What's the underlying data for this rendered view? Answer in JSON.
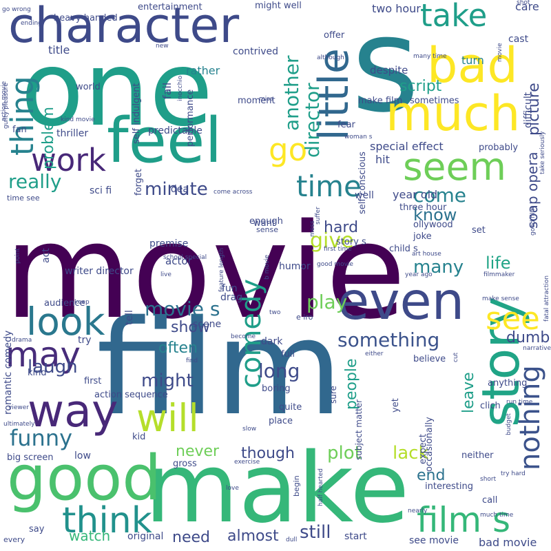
{
  "words": [
    {
      "text": "movie",
      "color": "#440154"
    },
    {
      "text": "film",
      "color": "#31688e"
    },
    {
      "text": "one",
      "color": "#1f9e89"
    },
    {
      "text": "make",
      "color": "#35b779"
    },
    {
      "text": "s",
      "color": "#26828e"
    },
    {
      "text": "character",
      "color": "#3e4a89"
    },
    {
      "text": "bad",
      "color": "#fde725"
    },
    {
      "text": "much",
      "color": "#fde725"
    },
    {
      "text": "good",
      "color": "#4ac16d"
    },
    {
      "text": "feel",
      "color": "#1f9e89"
    },
    {
      "text": "even",
      "color": "#3e4a89"
    },
    {
      "text": "story",
      "color": "#20a486"
    },
    {
      "text": "little",
      "color": "#31688e"
    },
    {
      "text": "seem",
      "color": "#6ece58"
    },
    {
      "text": "way",
      "color": "#482878"
    },
    {
      "text": "look",
      "color": "#2a788e"
    },
    {
      "text": "work",
      "color": "#482878"
    },
    {
      "text": "take",
      "color": "#1f9e89"
    },
    {
      "text": "thing",
      "color": "#26828e"
    },
    {
      "text": "go",
      "color": "#fde725"
    },
    {
      "text": "time",
      "color": "#26828e"
    },
    {
      "text": "may",
      "color": "#472c7a"
    },
    {
      "text": "will",
      "color": "#b5de2b"
    },
    {
      "text": "think",
      "color": "#21918c"
    },
    {
      "text": "see",
      "color": "#fde725"
    },
    {
      "text": "comedy",
      "color": "#1f9e89"
    },
    {
      "text": "nothing",
      "color": "#3b528b"
    },
    {
      "text": "film s",
      "color": "#35b779"
    },
    {
      "text": "something",
      "color": "#3b528b"
    },
    {
      "text": "funny",
      "color": "#2c728e"
    },
    {
      "text": "really",
      "color": "#1f9e89"
    },
    {
      "text": "minute",
      "color": "#3e4a89"
    },
    {
      "text": "director",
      "color": "#1f9e89"
    },
    {
      "text": "another",
      "color": "#1f9e89"
    },
    {
      "text": "picture",
      "color": "#3e4a89"
    },
    {
      "text": "script",
      "color": "#1f9e89"
    },
    {
      "text": "problem",
      "color": "#1f9e89"
    },
    {
      "text": "movie s",
      "color": "#2c728e"
    },
    {
      "text": "laugh",
      "color": "#3e4a89"
    },
    {
      "text": "might",
      "color": "#3e4a89"
    },
    {
      "text": "long",
      "color": "#3e4a89"
    },
    {
      "text": "come",
      "color": "#26828e"
    },
    {
      "text": "soap opera",
      "color": "#3e4a89"
    },
    {
      "text": "play",
      "color": "#6ece58"
    },
    {
      "text": "give",
      "color": "#b5de2b"
    },
    {
      "text": "life",
      "color": "#20a486"
    },
    {
      "text": "many",
      "color": "#26828e"
    },
    {
      "text": "know",
      "color": "#2c728e"
    },
    {
      "text": "hard",
      "color": "#3e4a89"
    },
    {
      "text": "people",
      "color": "#1f9e89"
    },
    {
      "text": "leave",
      "color": "#1f9e89"
    },
    {
      "text": "never",
      "color": "#6ece58"
    },
    {
      "text": "lack",
      "color": "#b5de2b"
    },
    {
      "text": "plot",
      "color": "#6ece58"
    },
    {
      "text": "though",
      "color": "#3e4a89"
    },
    {
      "text": "end",
      "color": "#2c728e"
    },
    {
      "text": "still",
      "color": "#3e4a89"
    },
    {
      "text": "almost",
      "color": "#3e4a89"
    },
    {
      "text": "need",
      "color": "#3e4a89"
    },
    {
      "text": "watch",
      "color": "#35b779"
    },
    {
      "text": "often",
      "color": "#26828e"
    },
    {
      "text": "show",
      "color": "#3e4a89"
    },
    {
      "text": "dumb",
      "color": "#3e4a89"
    },
    {
      "text": "two hour",
      "color": "#3e4a89"
    },
    {
      "text": "rather",
      "color": "#26828e"
    },
    {
      "text": "title",
      "color": "#3e4a89"
    },
    {
      "text": "contrived",
      "color": "#3e4a89"
    },
    {
      "text": "might well",
      "color": "#3e4a89"
    },
    {
      "text": "heavy handed",
      "color": "#3e4a89"
    },
    {
      "text": "entertainment",
      "color": "#3e4a89"
    },
    {
      "text": "go wrong",
      "color": "#3e4a89"
    },
    {
      "text": "ending",
      "color": "#3e4a89"
    },
    {
      "text": "care",
      "color": "#3e4a89"
    },
    {
      "text": "shot",
      "color": "#3e4a89"
    },
    {
      "text": "cast",
      "color": "#3e4a89"
    },
    {
      "text": "turn",
      "color": "#26828e"
    },
    {
      "text": "offer",
      "color": "#3e4a89"
    },
    {
      "text": "despite",
      "color": "#3e4a89"
    },
    {
      "text": "although",
      "color": "#3e4a89"
    },
    {
      "text": "many time",
      "color": "#3e4a89"
    },
    {
      "text": "movie",
      "color": "#3e4a89"
    },
    {
      "text": "difficult",
      "color": "#3e4a89"
    },
    {
      "text": "sometimes",
      "color": "#3e4a89"
    },
    {
      "text": "make film",
      "color": "#3e4a89"
    },
    {
      "text": "fear",
      "color": "#3e4a89"
    },
    {
      "text": "woman s",
      "color": "#3e4a89"
    },
    {
      "text": "take seriously",
      "color": "#3e4a89"
    },
    {
      "text": "probably",
      "color": "#3e4a89"
    },
    {
      "text": "special effect",
      "color": "#3e4a89"
    },
    {
      "text": "self conscious",
      "color": "#3e4a89"
    },
    {
      "text": "hit",
      "color": "#3e4a89"
    },
    {
      "text": "year old",
      "color": "#3e4a89"
    },
    {
      "text": "three hour",
      "color": "#3e4a89"
    },
    {
      "text": "mess",
      "color": "#3e4a89"
    },
    {
      "text": "suffer",
      "color": "#3e4a89"
    },
    {
      "text": "story s",
      "color": "#3e4a89"
    },
    {
      "text": "joke",
      "color": "#3e4a89"
    },
    {
      "text": "ollywood",
      "color": "#3e4a89"
    },
    {
      "text": "child s",
      "color": "#3e4a89"
    },
    {
      "text": "set",
      "color": "#3e4a89"
    },
    {
      "text": "art house",
      "color": "#3e4a89"
    },
    {
      "text": "first time",
      "color": "#3e4a89"
    },
    {
      "text": "good movie",
      "color": "#3e4a89"
    },
    {
      "text": "year ago",
      "color": "#3e4a89"
    },
    {
      "text": "filmmaker",
      "color": "#3e4a89"
    },
    {
      "text": "fatal attraction",
      "color": "#3e4a89"
    },
    {
      "text": "good film",
      "color": "#3e4a89"
    },
    {
      "text": "make sense",
      "color": "#3e4a89"
    },
    {
      "text": "world",
      "color": "#3e4a89"
    },
    {
      "text": "inocchio",
      "color": "#3e4a89"
    },
    {
      "text": "self indulgent",
      "color": "#3e4a89"
    },
    {
      "text": "fail",
      "color": "#3e4a89"
    },
    {
      "text": "performance",
      "color": "#3e4a89"
    },
    {
      "text": "moment",
      "color": "#3e4a89"
    },
    {
      "text": "miss",
      "color": "#3e4a89"
    },
    {
      "text": "predictable",
      "color": "#3e4a89"
    },
    {
      "text": "guilty pleasure",
      "color": "#3e4a89"
    },
    {
      "text": "action movie",
      "color": "#3e4a89"
    },
    {
      "text": "kind movie",
      "color": "#3e4a89"
    },
    {
      "text": "thriller",
      "color": "#3e4a89"
    },
    {
      "text": "fan",
      "color": "#3e4a89"
    },
    {
      "text": "forget",
      "color": "#3e4a89"
    },
    {
      "text": "sci fi",
      "color": "#3e4a89"
    },
    {
      "text": "idea",
      "color": "#3e4a89"
    },
    {
      "text": "time see",
      "color": "#3e4a89"
    },
    {
      "text": "come across",
      "color": "#3e4a89"
    },
    {
      "text": "well",
      "color": "#3e4a89"
    },
    {
      "text": "enough",
      "color": "#3e4a89"
    },
    {
      "text": "want",
      "color": "#3e4a89"
    },
    {
      "text": "sense",
      "color": "#3e4a89"
    },
    {
      "text": "feature length",
      "color": "#3e4a89"
    },
    {
      "text": "b movie",
      "color": "#3e4a89"
    },
    {
      "text": "romantic comedy",
      "color": "#3e4a89"
    },
    {
      "text": "act",
      "color": "#3e4a89"
    },
    {
      "text": "premise",
      "color": "#3e4a89"
    },
    {
      "text": "actor",
      "color": "#3e4a89"
    },
    {
      "text": "scene",
      "color": "#3e4a89"
    },
    {
      "text": "fun",
      "color": "#3e4a89"
    },
    {
      "text": "point",
      "color": "#3e4a89"
    },
    {
      "text": "school special",
      "color": "#3e4a89"
    },
    {
      "text": "live",
      "color": "#3e4a89"
    },
    {
      "text": "tell",
      "color": "#3e4a89"
    },
    {
      "text": "writer director",
      "color": "#3e4a89"
    },
    {
      "text": "humor",
      "color": "#3e4a89"
    },
    {
      "text": "audience",
      "color": "#3e4a89"
    },
    {
      "text": "keep",
      "color": "#3e4a89"
    },
    {
      "text": "drag",
      "color": "#3e4a89"
    },
    {
      "text": "e iro",
      "color": "#3e4a89"
    },
    {
      "text": "two",
      "color": "#3e4a89"
    },
    {
      "text": "dark",
      "color": "#3e4a89"
    },
    {
      "text": "become",
      "color": "#3e4a89"
    },
    {
      "text": "full",
      "color": "#3e4a89"
    },
    {
      "text": "try",
      "color": "#3e4a89"
    },
    {
      "text": "drama",
      "color": "#3e4a89"
    },
    {
      "text": "find",
      "color": "#3e4a89"
    },
    {
      "text": "believe",
      "color": "#3e4a89"
    },
    {
      "text": "either",
      "color": "#3e4a89"
    },
    {
      "text": "cut",
      "color": "#3e4a89"
    },
    {
      "text": "narrative",
      "color": "#3e4a89"
    },
    {
      "text": "first",
      "color": "#3e4a89"
    },
    {
      "text": "kind",
      "color": "#3e4a89"
    },
    {
      "text": "sure",
      "color": "#3e4a89"
    },
    {
      "text": "subject matter",
      "color": "#3e4a89"
    },
    {
      "text": "action sequence",
      "color": "#3e4a89"
    },
    {
      "text": "boring",
      "color": "#3e4a89"
    },
    {
      "text": "yet",
      "color": "#3e4a89"
    },
    {
      "text": "anything",
      "color": "#3e4a89"
    },
    {
      "text": "quite",
      "color": "#3e4a89"
    },
    {
      "text": "viewer",
      "color": "#3e4a89"
    },
    {
      "text": "place",
      "color": "#3e4a89"
    },
    {
      "text": "clich",
      "color": "#3e4a89"
    },
    {
      "text": "slow",
      "color": "#3e4a89"
    },
    {
      "text": "occasionally",
      "color": "#3e4a89"
    },
    {
      "text": "budget",
      "color": "#3e4a89"
    },
    {
      "text": "ultimately",
      "color": "#3e4a89"
    },
    {
      "text": "kid",
      "color": "#3e4a89"
    },
    {
      "text": "expect",
      "color": "#3e4a89"
    },
    {
      "text": "low",
      "color": "#3e4a89"
    },
    {
      "text": "big screen",
      "color": "#3e4a89"
    },
    {
      "text": "neither",
      "color": "#3e4a89"
    },
    {
      "text": "gross",
      "color": "#3e4a89"
    },
    {
      "text": "exercise",
      "color": "#3e4a89"
    },
    {
      "text": "try hard",
      "color": "#3e4a89"
    },
    {
      "text": "half hearted",
      "color": "#3e4a89"
    },
    {
      "text": "short",
      "color": "#3e4a89"
    },
    {
      "text": "call",
      "color": "#3e4a89"
    },
    {
      "text": "love",
      "color": "#3e4a89"
    },
    {
      "text": "begin",
      "color": "#3e4a89"
    },
    {
      "text": "interesting",
      "color": "#3e4a89"
    },
    {
      "text": "run time",
      "color": "#3e4a89"
    },
    {
      "text": "nearly",
      "color": "#3e4a89"
    },
    {
      "text": "much time",
      "color": "#3e4a89"
    },
    {
      "text": "say",
      "color": "#3e4a89"
    },
    {
      "text": "original",
      "color": "#3e4a89"
    },
    {
      "text": "dull",
      "color": "#3e4a89"
    },
    {
      "text": "start",
      "color": "#3e4a89"
    },
    {
      "text": "see movie",
      "color": "#3e4a89"
    },
    {
      "text": "bad movie",
      "color": "#3e4a89"
    },
    {
      "text": "every",
      "color": "#3e4a89"
    },
    {
      "text": "new",
      "color": "#3e4a89"
    }
  ]
}
